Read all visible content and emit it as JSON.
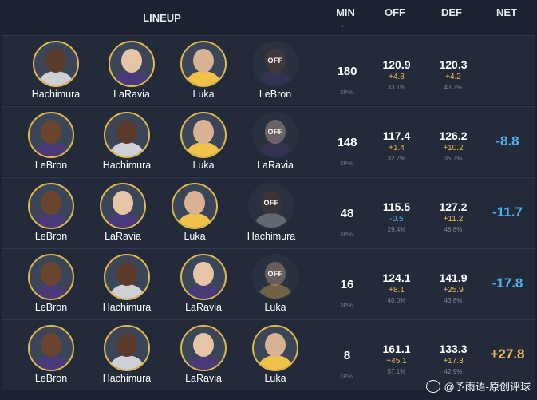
{
  "header": {
    "lineup": "LINEUP",
    "min": "MIN",
    "off": "OFF",
    "def": "DEF",
    "net": "NET"
  },
  "labels": {
    "off_badge": "OFF",
    "threepct_label": "3P%:"
  },
  "colors": {
    "positive": "#f2b950",
    "negative": "#4db0f0",
    "background": "#1b2230",
    "row": "#232b3b",
    "ring": "#e0b84d"
  },
  "rows": [
    {
      "players": [
        {
          "name": "Hachimura",
          "on": true
        },
        {
          "name": "LaRavia",
          "on": true
        },
        {
          "name": "Luka",
          "on": true
        },
        {
          "name": "LeBron",
          "on": false
        }
      ],
      "min": "180",
      "off": "120.9",
      "off_diff": "+4.8",
      "off_3p": "33.1%",
      "def": "120.3",
      "def_diff": "+4.2",
      "def_3p": "43.7%",
      "net": ""
    },
    {
      "players": [
        {
          "name": "LeBron",
          "on": true
        },
        {
          "name": "Hachimura",
          "on": true
        },
        {
          "name": "Luka",
          "on": true
        },
        {
          "name": "LaRavia",
          "on": false
        }
      ],
      "min": "148",
      "off": "117.4",
      "off_diff": "+1.4",
      "off_3p": "32.7%",
      "def": "126.2",
      "def_diff": "+10.2",
      "def_3p": "35.7%",
      "net": "-8.8"
    },
    {
      "players": [
        {
          "name": "LeBron",
          "on": true
        },
        {
          "name": "LaRavia",
          "on": true
        },
        {
          "name": "Luka",
          "on": true
        },
        {
          "name": "Hachimura",
          "on": false
        }
      ],
      "min": "48",
      "off": "115.5",
      "off_diff": "-0.5",
      "off_3p": "29.4%",
      "def": "127.2",
      "def_diff": "+11.2",
      "def_3p": "48.8%",
      "net": "-11.7"
    },
    {
      "players": [
        {
          "name": "LeBron",
          "on": true
        },
        {
          "name": "Hachimura",
          "on": true
        },
        {
          "name": "LaRavia",
          "on": true
        },
        {
          "name": "Luka",
          "on": false
        }
      ],
      "min": "16",
      "off": "124.1",
      "off_diff": "+8.1",
      "off_3p": "40.0%",
      "def": "141.9",
      "def_diff": "+25.9",
      "def_3p": "43.8%",
      "net": "-17.8"
    },
    {
      "players": [
        {
          "name": "LeBron",
          "on": true
        },
        {
          "name": "Hachimura",
          "on": true
        },
        {
          "name": "LaRavia",
          "on": true
        },
        {
          "name": "Luka",
          "on": true
        }
      ],
      "min": "8",
      "off": "161.1",
      "off_diff": "+45.1",
      "off_3p": "57.1%",
      "def": "133.3",
      "def_diff": "+17.3",
      "def_3p": "42.9%",
      "net": "+27.8"
    }
  ],
  "watermark": "@予雨语-原创评球"
}
